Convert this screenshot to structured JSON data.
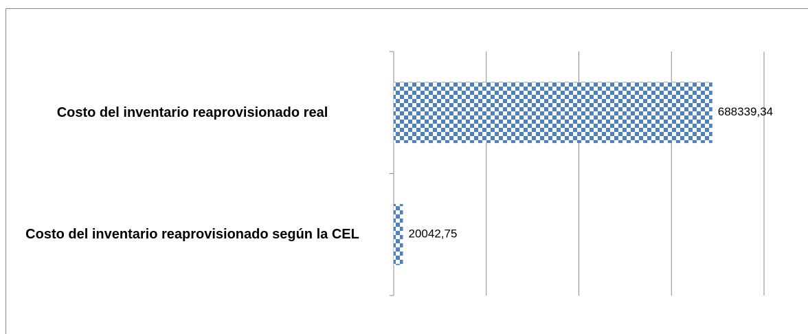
{
  "chart_data": {
    "type": "bar",
    "orientation": "horizontal",
    "categories": [
      "Costo del inventario reaprovisionado real",
      "Costo del inventario reaprovisionado según la CEL"
    ],
    "values": [
      688339.34,
      20042.75
    ],
    "value_labels": [
      "688339,34",
      "20042,75"
    ],
    "color": "#4f81bd",
    "xlim": [
      0,
      800000
    ],
    "xticks": [
      0,
      200000,
      400000,
      600000,
      800000
    ],
    "grid": true
  }
}
